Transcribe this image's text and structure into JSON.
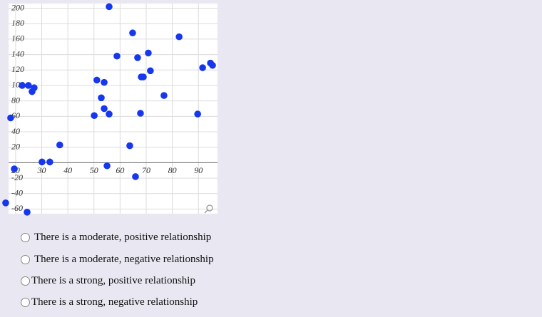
{
  "chart_data": {
    "type": "scatter",
    "x": [
      55.8,
      64.8,
      82.6,
      58.8,
      66.7,
      70.8,
      68.1,
      68.9,
      71.6,
      91.6,
      94.6,
      95.4,
      51.1,
      53.9,
      76.8,
      52.8,
      53.9,
      55.8,
      50.1,
      67.8,
      89.7,
      22.5,
      24.9,
      27.1,
      26.3,
      18.1,
      36.9,
      63.7,
      30.1,
      33.1,
      55,
      65.9,
      19.5,
      16.2,
      24.4
    ],
    "values": [
      202,
      168,
      163,
      138,
      136,
      142,
      111,
      111,
      119,
      123,
      129,
      126,
      107,
      104,
      87,
      84,
      70,
      63,
      61,
      64,
      63,
      100,
      100,
      97,
      92,
      58,
      23,
      22,
      1,
      1,
      -4,
      -18,
      -8,
      -52,
      -64
    ],
    "color": "#1537f0",
    "xlim": [
      17.3,
      97.3
    ],
    "ylim": [
      -66,
      206
    ],
    "xticks": [
      20,
      30,
      40,
      50,
      60,
      70,
      80,
      90
    ],
    "yticks": [
      200,
      180,
      160,
      140,
      120,
      100,
      80,
      60,
      40,
      20,
      -20,
      -40,
      -60
    ],
    "grid": true
  },
  "options": [
    "There is a moderate, positive relationship",
    "There is a moderate, negative relationship",
    "There is a strong, positive relationship",
    "There is a strong, negative relationship"
  ]
}
